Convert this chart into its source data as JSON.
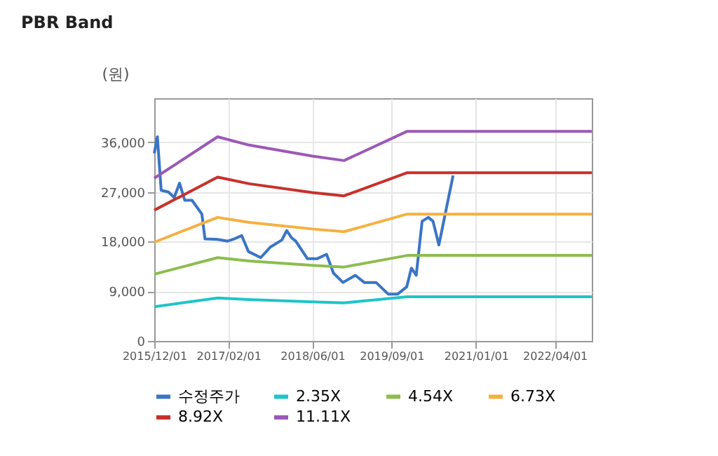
{
  "chart_data": {
    "type": "line",
    "title": "PBR Band",
    "ylabel": "(원)",
    "xlim": [
      "2015-12-01",
      "2022-11-01"
    ],
    "ylim": [
      0,
      44000
    ],
    "xticks": [
      {
        "value": "2015-12-01",
        "label": "2015/12/01"
      },
      {
        "value": "2017-02-01",
        "label": "2017/02/01"
      },
      {
        "value": "2018-06-01",
        "label": "2018/06/01"
      },
      {
        "value": "2019-09-01",
        "label": "2019/09/01"
      },
      {
        "value": "2021-01-01",
        "label": "2021/01/01"
      },
      {
        "value": "2022-04-01",
        "label": "2022/04/01"
      }
    ],
    "yticks": [
      0,
      {
        "value": 9000,
        "label": "9,000"
      },
      {
        "value": 18000,
        "label": "18,000"
      },
      {
        "value": 27000,
        "label": "27,000"
      },
      {
        "value": 36000,
        "label": "36,000"
      }
    ],
    "grid": true,
    "legend": "bottom",
    "marker": "none",
    "line_style": "solid",
    "series": [
      {
        "name": "수정주가",
        "color": "#3a75c4",
        "x": [
          "2015-12-01",
          "2015-12-19",
          "2016-01-10",
          "2016-02-21",
          "2016-03-25",
          "2016-04-25",
          "2016-05-25",
          "2016-07-06",
          "2016-09-01",
          "2016-09-19",
          "2016-12-01",
          "2017-01-28",
          "2017-03-07",
          "2017-04-19",
          "2017-05-28",
          "2017-08-07",
          "2017-10-01",
          "2017-12-07",
          "2018-01-04",
          "2018-02-01",
          "2018-02-25",
          "2018-05-04",
          "2018-06-28",
          "2018-08-22",
          "2018-10-01",
          "2018-11-25",
          "2019-02-04",
          "2019-03-28",
          "2019-06-04",
          "2019-08-13",
          "2019-10-07",
          "2019-11-28",
          "2019-12-25",
          "2020-01-22",
          "2020-02-25",
          "2020-04-01",
          "2020-04-28",
          "2020-06-01",
          "2020-07-04",
          "2020-08-22"
        ],
        "values": [
          34000,
          37000,
          27300,
          27000,
          26000,
          28600,
          25500,
          25500,
          23000,
          18500,
          18400,
          18100,
          18500,
          19100,
          16200,
          15100,
          17000,
          18300,
          20000,
          18700,
          18100,
          14900,
          14900,
          15700,
          12300,
          10600,
          11900,
          10600,
          10600,
          8500,
          8500,
          9800,
          13200,
          11900,
          21700,
          22400,
          21700,
          17400,
          22500,
          30000
        ]
      },
      {
        "name": "2.35X",
        "color": "#1fc4c9",
        "x": [
          "2015-12-01",
          "2016-12-01",
          "2017-06-01",
          "2018-06-01",
          "2018-12-01",
          "2019-12-01",
          "2022-11-01"
        ],
        "values": [
          6200,
          7800,
          7500,
          7100,
          6900,
          8000,
          8000
        ]
      },
      {
        "name": "4.54X",
        "color": "#8cbd4e",
        "x": [
          "2015-12-01",
          "2016-12-01",
          "2017-06-01",
          "2018-06-01",
          "2018-12-01",
          "2019-12-01",
          "2022-11-01"
        ],
        "values": [
          12100,
          15100,
          14500,
          13700,
          13400,
          15500,
          15500
        ]
      },
      {
        "name": "6.73X",
        "color": "#f5b041",
        "x": [
          "2015-12-01",
          "2016-12-01",
          "2017-06-01",
          "2018-06-01",
          "2018-12-01",
          "2019-12-01",
          "2022-11-01"
        ],
        "values": [
          17900,
          22400,
          21500,
          20300,
          19800,
          23000,
          23000
        ]
      },
      {
        "name": "8.92X",
        "color": "#c9302c",
        "x": [
          "2015-12-01",
          "2016-12-01",
          "2017-06-01",
          "2018-06-01",
          "2018-12-01",
          "2019-12-01",
          "2022-11-01"
        ],
        "values": [
          23700,
          29700,
          28500,
          26900,
          26300,
          30500,
          30500
        ]
      },
      {
        "name": "11.11X",
        "color": "#9b59b6",
        "x": [
          "2015-12-01",
          "2016-12-01",
          "2017-06-01",
          "2018-06-01",
          "2018-12-01",
          "2019-12-01",
          "2022-11-01"
        ],
        "values": [
          29500,
          37000,
          35500,
          33500,
          32700,
          38000,
          38000
        ]
      }
    ]
  }
}
